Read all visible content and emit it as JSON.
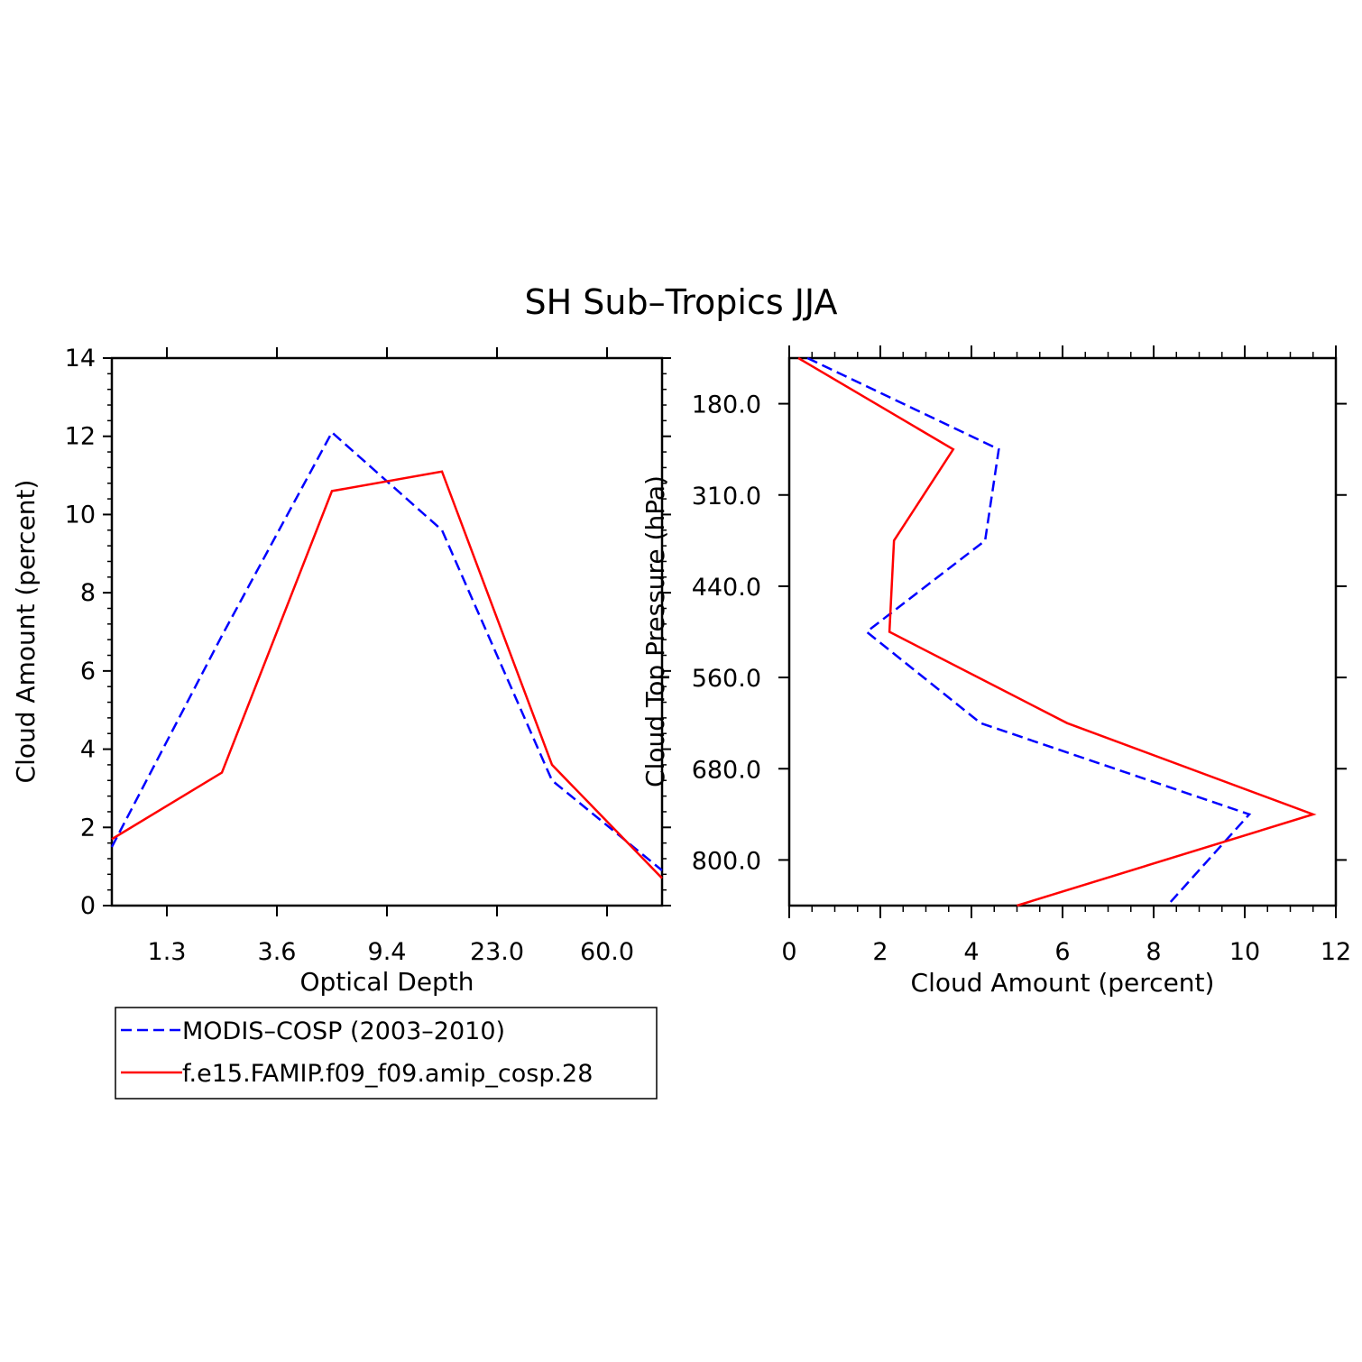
{
  "title": "SH Sub–Tropics JJA",
  "legend": {
    "placement": "bottom-left",
    "entries": [
      {
        "label": "MODIS–COSP (2003–2010)",
        "color": "#0000ff",
        "dash": "dashed"
      },
      {
        "label": "f.e15.FAMIP.f09_f09.amip_cosp.28",
        "color": "#ff0000",
        "dash": "solid"
      }
    ]
  },
  "chart_data": [
    {
      "type": "line",
      "xlabel": "Optical Depth",
      "ylabel": "Cloud Amount (percent)",
      "xtick_labels": [
        "1.3",
        "3.6",
        "9.4",
        "23.0",
        "60.0"
      ],
      "xtick_positions": [
        1,
        3,
        5,
        7,
        9
      ],
      "xlim": [
        0,
        10
      ],
      "ylim": [
        0,
        14
      ],
      "yticks": [
        0,
        2,
        4,
        6,
        8,
        10,
        12,
        14
      ],
      "x": [
        0,
        2,
        4,
        6,
        8,
        10
      ],
      "series": [
        {
          "name": "MODIS–COSP (2003–2010)",
          "color": "#0000ff",
          "dash": "dashed",
          "values": [
            1.5,
            6.9,
            12.1,
            9.6,
            3.2,
            0.9
          ]
        },
        {
          "name": "f.e15.FAMIP.f09_f09.amip_cosp.28",
          "color": "#ff0000",
          "dash": "solid",
          "values": [
            1.7,
            3.4,
            10.6,
            11.1,
            3.6,
            0.7
          ]
        }
      ]
    },
    {
      "type": "line",
      "orientation": "horizontal",
      "xlabel": "Cloud Amount (percent)",
      "ylabel": "Cloud Top Pressure (hPa)",
      "xlim": [
        0,
        12
      ],
      "xticks": [
        0,
        2,
        4,
        6,
        8,
        10,
        12
      ],
      "ytick_labels": [
        "180.0",
        "310.0",
        "440.0",
        "560.0",
        "680.0",
        "800.0"
      ],
      "ytick_positions": [
        1,
        3,
        5,
        7,
        9,
        11
      ],
      "ylim": [
        0,
        12
      ],
      "y": [
        0,
        2,
        4,
        6,
        8,
        10,
        12
      ],
      "series": [
        {
          "name": "MODIS–COSP (2003–2010)",
          "color": "#0000ff",
          "dash": "dashed",
          "values": [
            0.4,
            4.6,
            4.3,
            1.7,
            4.2,
            10.1,
            8.3
          ]
        },
        {
          "name": "f.e15.FAMIP.f09_f09.amip_cosp.28",
          "color": "#ff0000",
          "dash": "solid",
          "values": [
            0.2,
            3.6,
            2.3,
            2.2,
            6.1,
            11.5,
            5.0
          ]
        }
      ]
    }
  ]
}
